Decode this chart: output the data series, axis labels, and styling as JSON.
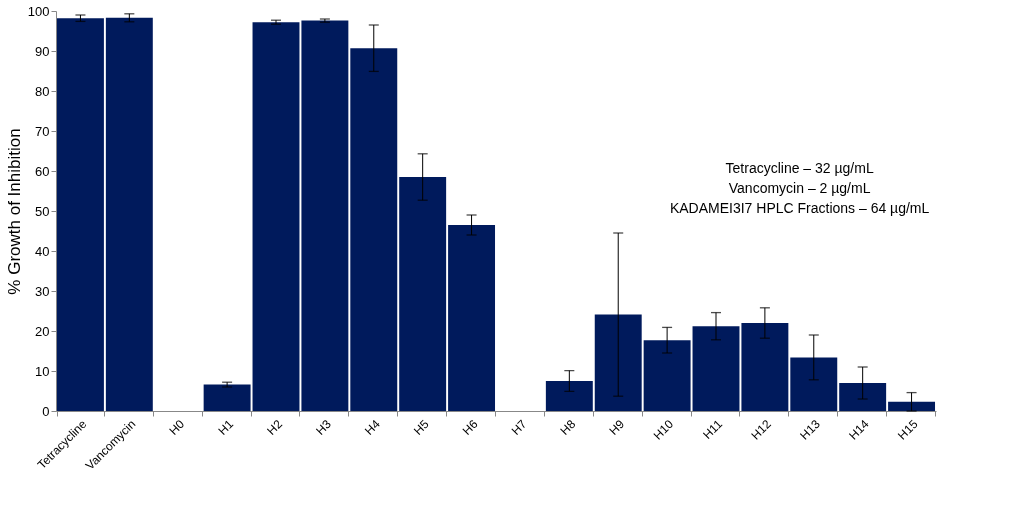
{
  "chart_data": {
    "type": "bar",
    "ylabel": "% Growth of Inhibition",
    "categories": [
      "Tetracycline",
      "Vancomycin",
      "H0",
      "H1",
      "H2",
      "H3",
      "H4",
      "H5",
      "H6",
      "H7",
      "H8",
      "H9",
      "H10",
      "H11",
      "H12",
      "H13",
      "H14",
      "H15"
    ],
    "values": [
      98.2,
      98.3,
      0,
      6.6,
      97.2,
      97.6,
      90.7,
      58.5,
      46.5,
      0,
      7.5,
      24.1,
      17.7,
      21.2,
      22.0,
      13.4,
      7.0,
      2.3
    ],
    "errors": [
      0.8,
      1.0,
      null,
      0.6,
      0.5,
      0.4,
      5.8,
      5.8,
      2.5,
      null,
      2.6,
      20.4,
      3.2,
      3.4,
      3.8,
      5.6,
      4.0,
      2.3
    ],
    "color": "#001a5c",
    "ylim": [
      0,
      100
    ],
    "yticks": [
      0,
      10,
      20,
      30,
      40,
      50,
      60,
      70,
      80,
      90,
      100
    ],
    "grid": false,
    "annotations": [
      "Tetracycline – 32 µg/mL",
      "Vancomycin – 2 µg/mL",
      "KADAMEI3I7 HPLC Fractions – 64 µg/mL"
    ]
  }
}
